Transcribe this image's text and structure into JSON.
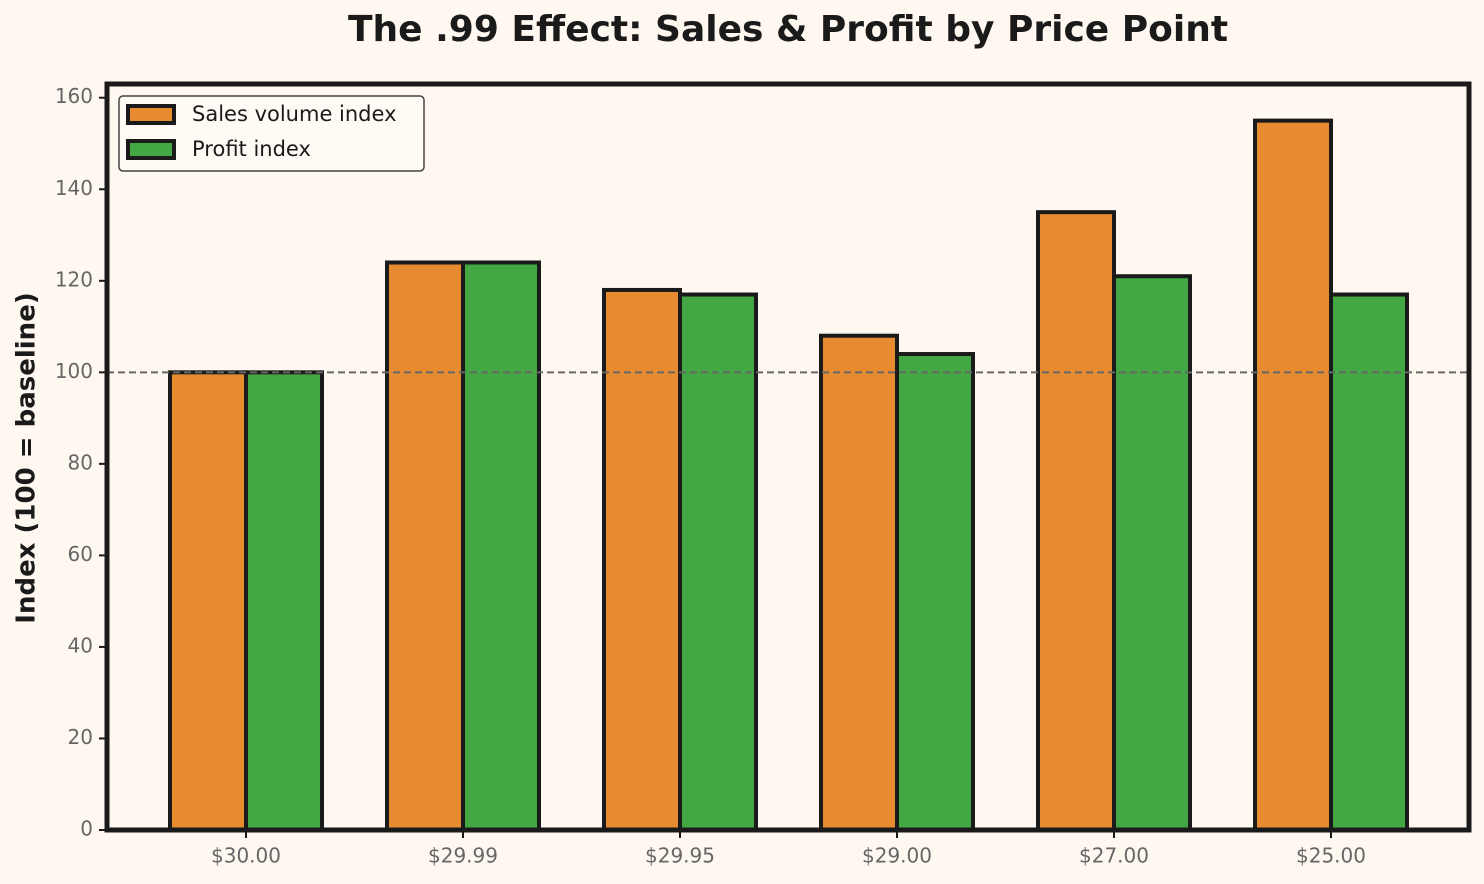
{
  "chart_data": {
    "type": "bar",
    "title": "The .99 Effect: Sales & Profit by Price Point",
    "y_label": "Index (100 = baseline)",
    "categories": [
      "$30.00",
      "$29.99",
      "$29.95",
      "$29.00",
      "$27.00",
      "$25.00"
    ],
    "series": [
      {
        "name": "Sales volume index",
        "color": "#e68b2f",
        "values": [
          100,
          124,
          118,
          108,
          135,
          155
        ]
      },
      {
        "name": "Profit index",
        "color": "#43a843",
        "values": [
          100,
          124,
          117,
          104,
          121,
          117
        ]
      }
    ],
    "reference_line": 100,
    "ylim": [
      0,
      163
    ],
    "yticks": [
      0,
      20,
      40,
      60,
      80,
      100,
      120,
      140,
      160
    ],
    "legend": "upper-left"
  }
}
